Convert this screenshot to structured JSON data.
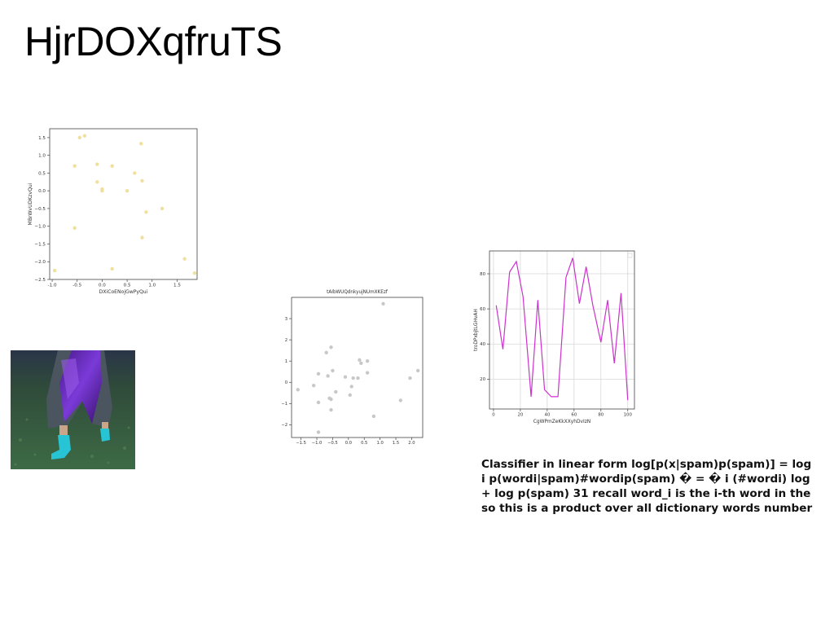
{
  "slide": {
    "title": "HjrDOXqfruTS",
    "body_lines": [
      "Classifier in linear form log[p(x|spam)p(spam)] = log",
      "i p(wordi|spam)#wordip(spam) � = � i (#wordi) log",
      "+ log p(spam) 31 recall word_i is the i-th word in the",
      "so this is a product over all dictionary words number"
    ]
  },
  "image": {
    "description_icon": "photo-legs-purple-skirt-teal-boots-on-grass"
  },
  "chart_data": [
    {
      "type": "scatter",
      "title": "",
      "xlabel": "DXiCoENojGwPyQui",
      "ylabel": "MBrWvUDKzvQui",
      "xlim": [
        -1.05,
        1.9
      ],
      "ylim": [
        -2.5,
        1.75
      ],
      "xticks": [
        -1.0,
        -0.5,
        0.0,
        0.5,
        1.0,
        1.5
      ],
      "xtick_labels": [
        "-1.0",
        "-0.5",
        "0.0",
        "0.5",
        "1.0",
        "1.5"
      ],
      "yticks": [
        1.5,
        1.0,
        0.5,
        0.0,
        -0.5,
        -1.0,
        -1.5,
        -2.0,
        -2.5
      ],
      "ytick_labels": [
        "1.5",
        "1.0",
        "0.5",
        "0.0",
        "−0.5",
        "−1.0",
        "−1.5",
        "−2.0",
        "−2.5"
      ],
      "color": "#f0e0a0",
      "grid": false,
      "points": [
        {
          "x": -0.95,
          "y": -2.25
        },
        {
          "x": -0.45,
          "y": 1.5
        },
        {
          "x": -0.35,
          "y": 1.55
        },
        {
          "x": -0.55,
          "y": 0.7
        },
        {
          "x": -0.55,
          "y": -1.05
        },
        {
          "x": -0.1,
          "y": 0.75
        },
        {
          "x": -0.1,
          "y": 0.25
        },
        {
          "x": 0.0,
          "y": 0.05
        },
        {
          "x": 0.0,
          "y": 0.0
        },
        {
          "x": 0.2,
          "y": 0.7
        },
        {
          "x": 0.2,
          "y": -2.2
        },
        {
          "x": 0.5,
          "y": 0.0
        },
        {
          "x": 0.65,
          "y": 0.5
        },
        {
          "x": 0.78,
          "y": 1.33
        },
        {
          "x": 0.8,
          "y": 0.28
        },
        {
          "x": 0.8,
          "y": -1.32
        },
        {
          "x": 0.88,
          "y": -0.6
        },
        {
          "x": 1.2,
          "y": -0.5
        },
        {
          "x": 1.65,
          "y": -1.92
        },
        {
          "x": 1.85,
          "y": -2.32
        }
      ]
    },
    {
      "type": "scatter",
      "title": "tAIbWUQdnkyujNUmXKEzf",
      "xlabel": "",
      "ylabel": "",
      "xlim": [
        -1.8,
        2.35
      ],
      "ylim": [
        -2.6,
        4.0
      ],
      "xticks": [
        -1.5,
        -1.0,
        -0.5,
        0.0,
        0.5,
        1.0,
        1.5,
        2.0
      ],
      "xtick_labels": [
        "−1.5",
        "−1.0",
        "−0.5",
        "0.0",
        "0.5",
        "1.0",
        "1.5",
        "2.0"
      ],
      "yticks": [
        3,
        2,
        1,
        0,
        -1,
        -2
      ],
      "ytick_labels": [
        "3",
        "2",
        "1",
        "0",
        "−1",
        "−2"
      ],
      "color": "#c8c8c8",
      "grid": false,
      "points": [
        {
          "x": -1.6,
          "y": -0.35
        },
        {
          "x": -1.1,
          "y": -0.15
        },
        {
          "x": -0.95,
          "y": 0.4
        },
        {
          "x": -0.95,
          "y": -0.95
        },
        {
          "x": -0.95,
          "y": -2.35
        },
        {
          "x": -0.7,
          "y": 1.4
        },
        {
          "x": -0.65,
          "y": 0.3
        },
        {
          "x": -0.6,
          "y": -0.75
        },
        {
          "x": -0.55,
          "y": -0.8
        },
        {
          "x": -0.55,
          "y": -1.3
        },
        {
          "x": -0.55,
          "y": 1.65
        },
        {
          "x": -0.5,
          "y": 0.55
        },
        {
          "x": -0.4,
          "y": -0.45
        },
        {
          "x": -0.1,
          "y": 0.25
        },
        {
          "x": 0.05,
          "y": -0.6
        },
        {
          "x": 0.1,
          "y": -0.2
        },
        {
          "x": 0.15,
          "y": 0.2
        },
        {
          "x": 0.3,
          "y": 0.2
        },
        {
          "x": 0.35,
          "y": 1.05
        },
        {
          "x": 0.4,
          "y": 0.9
        },
        {
          "x": 0.6,
          "y": 0.45
        },
        {
          "x": 0.6,
          "y": 1.0
        },
        {
          "x": 0.8,
          "y": -1.6
        },
        {
          "x": 1.1,
          "y": 3.7
        },
        {
          "x": 1.65,
          "y": -0.85
        },
        {
          "x": 1.95,
          "y": 0.2
        },
        {
          "x": 2.2,
          "y": 0.55
        }
      ]
    },
    {
      "type": "line",
      "title": "",
      "xlabel": "CgWPmZeKkXXyhDvIzN",
      "ylabel": "troDPxbjtLGHvAH",
      "xlim": [
        -3,
        105
      ],
      "ylim": [
        3,
        93
      ],
      "xticks": [
        0,
        20,
        40,
        60,
        80,
        100
      ],
      "xtick_labels": [
        "0",
        "20",
        "40",
        "60",
        "80",
        "100"
      ],
      "yticks": [
        20,
        40,
        60,
        80
      ],
      "ytick_labels": [
        "20",
        "40",
        "60",
        "80"
      ],
      "color": "#cc33cc",
      "grid": true,
      "legend": "top-right",
      "x": [
        2,
        7,
        12,
        17,
        22,
        28,
        33,
        38,
        43,
        48,
        54,
        59,
        64,
        69,
        74,
        80,
        85,
        90,
        95,
        100
      ],
      "y": [
        62,
        37,
        81,
        87,
        67,
        10,
        65,
        14,
        10,
        10,
        78,
        89,
        63,
        84,
        62,
        41,
        65,
        29,
        69,
        8
      ]
    }
  ]
}
